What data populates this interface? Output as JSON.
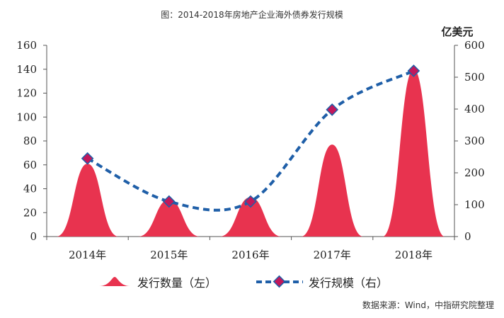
{
  "chart_data": {
    "type": "area",
    "title": "图：2014-2018年房地产企业海外债券发行规模",
    "categories": [
      "2014年",
      "2015年",
      "2016年",
      "2017年",
      "2018年"
    ],
    "y_left": {
      "ticks": [
        "0",
        "20",
        "40",
        "60",
        "80",
        "100",
        "120",
        "140",
        "160"
      ],
      "ylim": [
        0,
        160
      ]
    },
    "y_right": {
      "unit_label": "亿美元",
      "ticks": [
        "0",
        "100",
        "200",
        "300",
        "400",
        "500",
        "600"
      ],
      "ylim": [
        0,
        600
      ]
    },
    "series": [
      {
        "name": "发行数量（左）",
        "axis": "left",
        "style": "peak-area",
        "color": "#e8334f",
        "values": [
          61,
          31,
          33,
          77,
          140
        ]
      },
      {
        "name": "发行规模（右）",
        "axis": "right",
        "style": "dashed-line-markers",
        "color": "#1f5fa8",
        "marker_color": "#c2185b",
        "values": [
          245,
          110,
          110,
          398,
          520
        ]
      }
    ],
    "legend_position": "bottom"
  },
  "source_note": "数据来源：Wind，中指研究院整理"
}
